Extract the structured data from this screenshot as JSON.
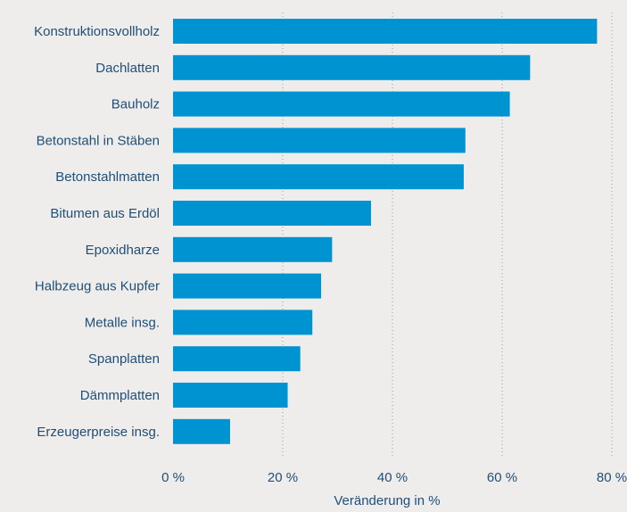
{
  "chart_data": {
    "type": "bar",
    "orientation": "horizontal",
    "categories": [
      "Konstruktionsvollholz",
      "Dachlatten",
      "Bauholz",
      "Betonstahl in Stäben",
      "Betonstahlmatten",
      "Bitumen aus Erdöl",
      "Epoxidharze",
      "Halbzeug aus Kupfer",
      "Metalle insg.",
      "Spanplatten",
      "Dämmplatten",
      "Erzeugerpreise insg."
    ],
    "values": [
      77.3,
      65.1,
      61.4,
      53.3,
      53.0,
      36.1,
      29.0,
      27.0,
      25.4,
      23.2,
      20.9,
      10.4
    ],
    "xlabel": "Veränderung in %",
    "xlim": [
      0,
      80
    ],
    "xticks": [
      0,
      20,
      40,
      60,
      80
    ],
    "xtick_labels": [
      "0 %",
      "20 %",
      "40 %",
      "60 %",
      "80 %"
    ],
    "grid": "vertical dotted",
    "bar_color": "#0093d1",
    "label_color": "#1e4f78"
  }
}
